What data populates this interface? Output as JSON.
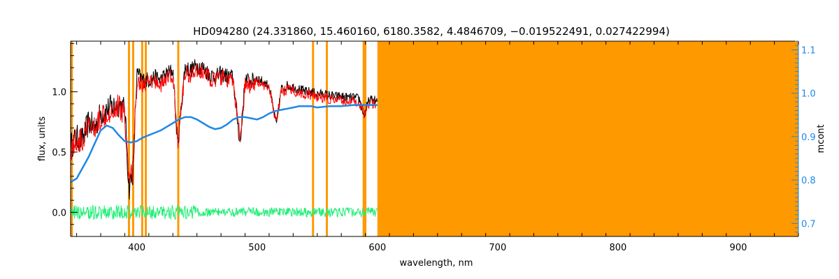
{
  "chart_data": {
    "type": "line",
    "title": "HD094280   (24.331860, 15.460160, 6180.3582, 4.4846709, −0.019522491, 0.027422994)",
    "xlabel": "wavelength, nm",
    "ylabel": "flux, units",
    "y2label": "mcont",
    "xlim": [
      345,
      950
    ],
    "ylim": [
      -0.2,
      1.42
    ],
    "y2lim": [
      0.67,
      1.12
    ],
    "x_ticks": [
      400,
      500,
      600,
      700,
      800,
      900
    ],
    "y_ticks": [
      0.0,
      0.5,
      1.0
    ],
    "y_tick_labels": [
      "0.0",
      "0.5",
      "1.0"
    ],
    "y2_ticks": [
      0.7,
      0.8,
      0.9,
      1.0,
      1.1
    ],
    "y2_tick_labels": [
      "0.7",
      "0.8",
      "0.9",
      "1.0",
      "1.1"
    ],
    "grid": false,
    "colors": {
      "observed": "#000000",
      "model": "#ff0000",
      "continuum": "#1e88e5",
      "residual": "#22ee77",
      "mask": "#ff9900",
      "right_axis": "#1e88e5"
    },
    "masked_lines_nm": [
      346,
      393.5,
      397,
      404.5,
      407.5,
      434.5,
      546.5,
      558,
      588.6,
      590
    ],
    "masked_band_nm": [
      600,
      950
    ],
    "series": [
      {
        "id": "observed",
        "x": [
          345,
          350,
          355,
          360,
          365,
          370,
          375,
          380,
          385,
          390,
          393.5,
          397,
          400,
          405,
          410,
          415,
          420,
          425,
          430,
          434,
          440,
          445,
          450,
          455,
          460,
          465,
          470,
          475,
          480,
          486,
          490,
          495,
          500,
          505,
          510,
          516,
          520,
          525,
          530,
          535,
          540,
          545,
          550,
          555,
          560,
          565,
          570,
          575,
          580,
          585,
          589,
          593,
          596,
          600
        ],
        "y": [
          0.55,
          0.62,
          0.6,
          0.75,
          0.7,
          0.82,
          0.85,
          0.88,
          0.9,
          0.85,
          0.2,
          0.35,
          1.15,
          1.1,
          1.1,
          1.12,
          1.1,
          1.15,
          1.18,
          0.55,
          1.2,
          1.18,
          1.22,
          1.2,
          1.15,
          1.12,
          1.15,
          1.13,
          1.12,
          0.55,
          1.1,
          1.08,
          1.12,
          1.08,
          1.05,
          0.72,
          1.02,
          1.05,
          1.04,
          1.02,
          1.0,
          1.0,
          0.98,
          0.98,
          0.97,
          0.96,
          0.96,
          0.95,
          0.95,
          0.94,
          0.8,
          0.93,
          0.93,
          0.92
        ]
      },
      {
        "id": "model",
        "x": [
          345,
          350,
          355,
          360,
          365,
          370,
          375,
          380,
          385,
          390,
          393.5,
          397,
          400,
          405,
          410,
          415,
          420,
          425,
          430,
          434,
          440,
          445,
          450,
          455,
          460,
          465,
          470,
          475,
          480,
          486,
          490,
          495,
          500,
          505,
          510,
          516,
          520,
          525,
          530,
          535,
          540,
          545,
          550,
          555,
          560,
          565,
          570,
          575,
          580,
          585,
          589,
          593,
          596,
          600
        ],
        "y": [
          0.53,
          0.6,
          0.58,
          0.72,
          0.68,
          0.8,
          0.83,
          0.86,
          0.88,
          0.83,
          0.25,
          0.38,
          1.1,
          1.06,
          1.07,
          1.09,
          1.06,
          1.11,
          1.14,
          0.58,
          1.16,
          1.14,
          1.17,
          1.16,
          1.12,
          1.09,
          1.12,
          1.1,
          1.09,
          0.58,
          1.07,
          1.05,
          1.09,
          1.05,
          1.02,
          0.75,
          0.99,
          1.02,
          1.01,
          0.99,
          0.98,
          0.97,
          0.96,
          0.95,
          0.94,
          0.93,
          0.93,
          0.92,
          0.92,
          0.91,
          0.82,
          0.9,
          0.9,
          0.89
        ]
      },
      {
        "id": "continuum",
        "x": [
          345,
          350,
          355,
          360,
          365,
          370,
          375,
          380,
          385,
          390,
          395,
          400,
          405,
          410,
          415,
          420,
          425,
          430,
          435,
          440,
          445,
          450,
          455,
          460,
          465,
          470,
          475,
          480,
          485,
          490,
          495,
          500,
          505,
          510,
          515,
          520,
          525,
          530,
          535,
          540,
          545,
          550,
          560,
          570,
          580,
          590,
          600
        ],
        "y": [
          0.25,
          0.28,
          0.37,
          0.46,
          0.57,
          0.68,
          0.72,
          0.7,
          0.64,
          0.59,
          0.58,
          0.59,
          0.62,
          0.64,
          0.66,
          0.68,
          0.71,
          0.74,
          0.77,
          0.79,
          0.79,
          0.77,
          0.74,
          0.71,
          0.69,
          0.7,
          0.73,
          0.77,
          0.79,
          0.79,
          0.78,
          0.77,
          0.79,
          0.82,
          0.84,
          0.85,
          0.86,
          0.87,
          0.88,
          0.88,
          0.88,
          0.87,
          0.88,
          0.88,
          0.89,
          0.89,
          0.89
        ]
      },
      {
        "id": "residual",
        "x": [
          345,
          600
        ],
        "y": [
          0.0,
          0.0
        ],
        "amplitude": 0.05
      }
    ]
  }
}
